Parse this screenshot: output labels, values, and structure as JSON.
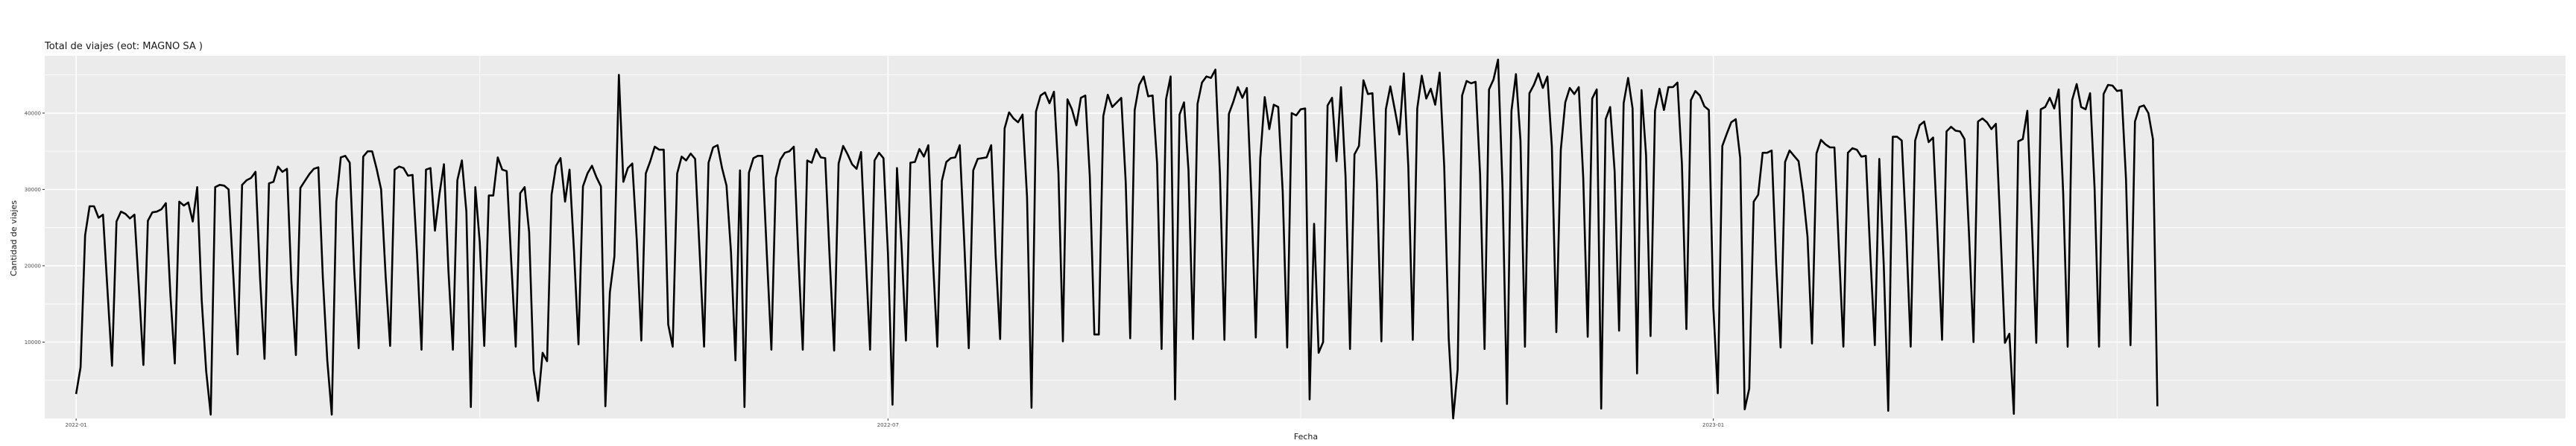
{
  "chart_data": {
    "type": "line",
    "title": "Total de viajes (eot: MAGNO SA )",
    "xlabel": "Fecha",
    "ylabel": "Cantidad de viajes",
    "x_tick_labels": [
      "2022-01",
      "2022-07",
      "2023-01"
    ],
    "x_ticks": [
      "2022-01-01",
      "2022-07-01",
      "2023-01-01"
    ],
    "xlim": [
      "2021-12-25",
      "2023-07-10"
    ],
    "y_tick_labels": [
      "10000",
      "20000",
      "30000",
      "40000"
    ],
    "y_ticks": [
      10000,
      20000,
      30000,
      40000
    ],
    "ylim": [
      0,
      47500
    ],
    "grid": true,
    "background": "#ebebeb",
    "line_color": "#000000",
    "series": [
      {
        "x_start": "2022-01-01",
        "x_step_days": 1,
        "values": [
          3200,
          6700,
          24000,
          27800,
          27800,
          26300,
          26700,
          16800,
          6900,
          25800,
          27100,
          26800,
          26200,
          26700,
          17000,
          7000,
          25900,
          27000,
          27100,
          27400,
          28200,
          16400,
          7200,
          28400,
          27900,
          28300,
          25800,
          30300,
          15500,
          6200,
          500,
          30300,
          30600,
          30500,
          30000,
          19300,
          8400,
          30600,
          31200,
          31500,
          32300,
          18400,
          7800,
          30800,
          31000,
          33000,
          32300,
          32700,
          17800,
          8300,
          30200,
          31100,
          32000,
          32700,
          32900,
          18500,
          7600,
          500,
          28400,
          34200,
          34400,
          33500,
          19500,
          9200,
          34300,
          35000,
          35000,
          32700,
          30000,
          18600,
          9500,
          32600,
          33000,
          32800,
          31800,
          31900,
          21600,
          9000,
          32600,
          32800,
          24600,
          29400,
          33300,
          19400,
          9000,
          31200,
          33800,
          27100,
          1500,
          30300,
          23000,
          9500,
          29200,
          29200,
          34200,
          32600,
          32400,
          20500,
          9400,
          29500,
          30300,
          24400,
          6300,
          2300,
          8600,
          7500,
          29300,
          33100,
          34100,
          28400,
          32600,
          21900,
          9700,
          30400,
          32100,
          33100,
          31600,
          30400,
          1600,
          16500,
          21200,
          45000,
          31000,
          32800,
          33400,
          23400,
          10200,
          32100,
          33700,
          35600,
          35200,
          35200,
          12300,
          9400,
          32100,
          34300,
          33800,
          34700,
          34000,
          21900,
          9400,
          33500,
          35500,
          35800,
          32800,
          30500,
          21800,
          7600,
          32500,
          1500,
          32200,
          34100,
          34400,
          34400,
          21300,
          9000,
          31500,
          33900,
          34800,
          35000,
          35600,
          21400,
          9000,
          33800,
          33500,
          35300,
          34200,
          34100,
          21000,
          8900,
          33400,
          35700,
          34600,
          33300,
          32700,
          34900,
          21700,
          9000,
          33800,
          34800,
          34100,
          21600,
          1800,
          32800,
          22800,
          10200,
          33500,
          33600,
          35300,
          34300,
          35800,
          21100,
          9400,
          31100,
          33600,
          34100,
          34200,
          35800,
          23200,
          9200,
          32500,
          34000,
          34100,
          34200,
          35800,
          21300,
          10400,
          38000,
          40100,
          39300,
          38800,
          39800,
          29000,
          1400,
          40200,
          42300,
          42700,
          41300,
          42800,
          32200,
          10100,
          41800,
          40500,
          38400,
          42000,
          42300,
          31700,
          11000,
          11000,
          39600,
          42400,
          40800,
          41400,
          42000,
          30900,
          10500,
          40400,
          43700,
          44800,
          42200,
          42300,
          33400,
          9100,
          41800,
          44800,
          2500,
          39800,
          41400,
          32500,
          10400,
          41200,
          44000,
          44800,
          44600,
          45700,
          32000,
          10300,
          39900,
          41500,
          43400,
          42000,
          43300,
          29300,
          10600,
          34100,
          42100,
          37900,
          41100,
          40800,
          29700,
          9300,
          40000,
          39700,
          40500,
          40600,
          2500,
          25500,
          8600,
          10000,
          41000,
          42000,
          33700,
          43400,
          31700,
          9100,
          34600,
          35700,
          44300,
          42500,
          42600,
          30800,
          10100,
          40500,
          43500,
          40400,
          37200,
          45200,
          33000,
          10300,
          40600,
          44900,
          41900,
          43200,
          41100,
          45300,
          33000,
          10500,
          0,
          6400,
          42300,
          44200,
          43900,
          44100,
          32000,
          9100,
          43100,
          44400,
          47000,
          30300,
          1900,
          40300,
          45100,
          36400,
          9400,
          42600,
          43700,
          45200,
          43300,
          44800,
          35600,
          11300,
          35200,
          41400,
          43300,
          42500,
          43400,
          31500,
          10700,
          41900,
          43100,
          1300,
          39200,
          40800,
          32400,
          11500,
          41300,
          44600,
          40600,
          5900,
          43000,
          34500,
          10800,
          40300,
          43200,
          40400,
          43400,
          43400,
          44000,
          33300,
          11700,
          41700,
          42900,
          42300,
          40900,
          40400,
          14600,
          3300,
          35700,
          37300,
          38800,
          39200,
          34100,
          1200,
          3900,
          28400,
          29300,
          34800,
          34800,
          35100,
          20300,
          9300,
          33600,
          35100,
          34400,
          33700,
          29500,
          23800,
          9800,
          34700,
          36500,
          35900,
          35500,
          35500,
          22200,
          9400,
          34800,
          35400,
          35200,
          34300,
          34400,
          21500,
          9600,
          34000,
          20000,
          1000,
          36900,
          36900,
          36400,
          24200,
          9400,
          36400,
          38400,
          38900,
          36200,
          36800,
          23900,
          10300,
          37600,
          38200,
          37700,
          37600,
          36600,
          24300,
          10000,
          38900,
          39300,
          38800,
          37900,
          38600,
          24800,
          9900,
          11100,
          600,
          36300,
          36600,
          40300,
          25600,
          9900,
          40500,
          40800,
          42000,
          40600,
          43100,
          29500,
          9400,
          41700,
          43800,
          40800,
          40500,
          42600,
          30200,
          9400,
          42500,
          43700,
          43600,
          42900,
          43000,
          31300,
          9600,
          38900,
          40800,
          41000,
          40000,
          36600,
          1600
        ]
      }
    ]
  }
}
